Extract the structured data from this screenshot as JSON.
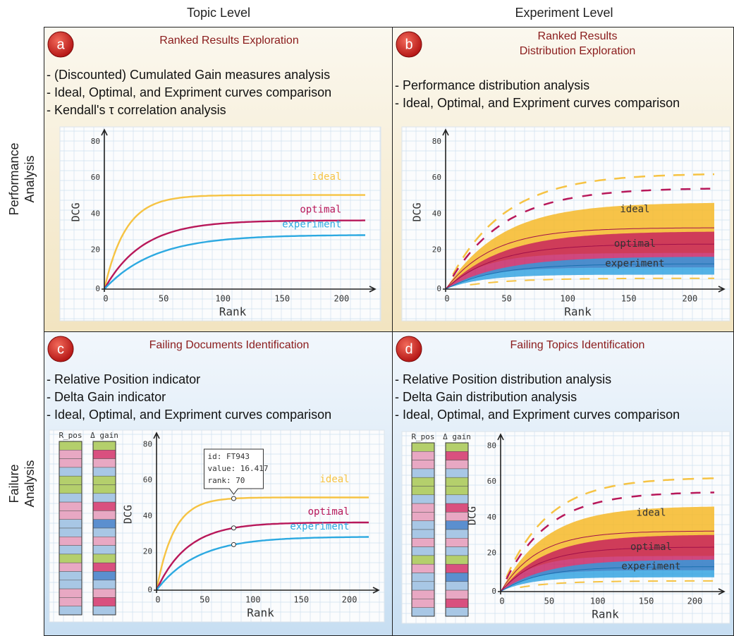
{
  "columns": [
    "Topic Level",
    "Experiment Level"
  ],
  "rows": [
    [
      "Performance",
      "Analysis"
    ],
    [
      "Failure",
      "Analysis"
    ]
  ],
  "panels": [
    {
      "badge": "a",
      "title": [
        "Ranked Results Exploration"
      ],
      "bullets": [
        "- (Discounted) Cumulated Gain measures analysis",
        "- Ideal, Optimal, and Expriment curves comparison",
        "- Kendall's τ correlation analysis"
      ],
      "chart": {
        "kind": "curves",
        "ylabel": "DCG",
        "xlabel": "Rank",
        "xticks": [
          0,
          50,
          100,
          150,
          200
        ],
        "yticks": [
          0,
          20,
          40,
          60,
          80
        ],
        "legend": [
          "ideal",
          "optimal",
          "experiment"
        ]
      }
    },
    {
      "badge": "b",
      "title": [
        "Ranked Results",
        "Distribution Exploration"
      ],
      "bullets": [
        "- Performance distribution analysis",
        "- Ideal, Optimal, and Expriment curves comparison"
      ],
      "chart": {
        "kind": "bands",
        "ylabel": "DCG",
        "xlabel": "Rank",
        "xticks": [
          0,
          50,
          100,
          150,
          200
        ],
        "yticks": [
          0,
          20,
          40,
          60,
          80
        ],
        "legend": [
          "ideal",
          "optimal",
          "experiment"
        ]
      }
    },
    {
      "badge": "c",
      "title": [
        "Failing Documents Identification"
      ],
      "bullets": [
        "- Relative Position indicator",
        "- Delta Gain indicator",
        "- Ideal, Optimal, and Expriment curves comparison"
      ],
      "chart": {
        "kind": "curves",
        "ylabel": "DCG",
        "xlabel": "Rank",
        "xticks": [
          0,
          50,
          100,
          150,
          200
        ],
        "yticks": [
          0,
          20,
          40,
          60,
          80
        ],
        "legend": [
          "ideal",
          "optimal",
          "experiment"
        ],
        "bars": [
          "R_pos",
          "Δ gain"
        ],
        "tooltip": [
          "id: FT943",
          "value: 16.417",
          "rank: 70"
        ]
      }
    },
    {
      "badge": "d",
      "title": [
        "Failing Topics Identification"
      ],
      "bullets": [
        "- Relative Position distribution analysis",
        "- Delta Gain distribution analysis",
        "- Ideal, Optimal, and Expriment curves comparison"
      ],
      "chart": {
        "kind": "bands",
        "ylabel": "DCG",
        "xlabel": "Rank",
        "xticks": [
          0,
          50,
          100,
          150,
          200
        ],
        "yticks": [
          0,
          20,
          40,
          60,
          80
        ],
        "legend": [
          "ideal",
          "optimal",
          "experiment"
        ],
        "bars": [
          "R_pos",
          "Δ gain"
        ]
      }
    }
  ]
}
